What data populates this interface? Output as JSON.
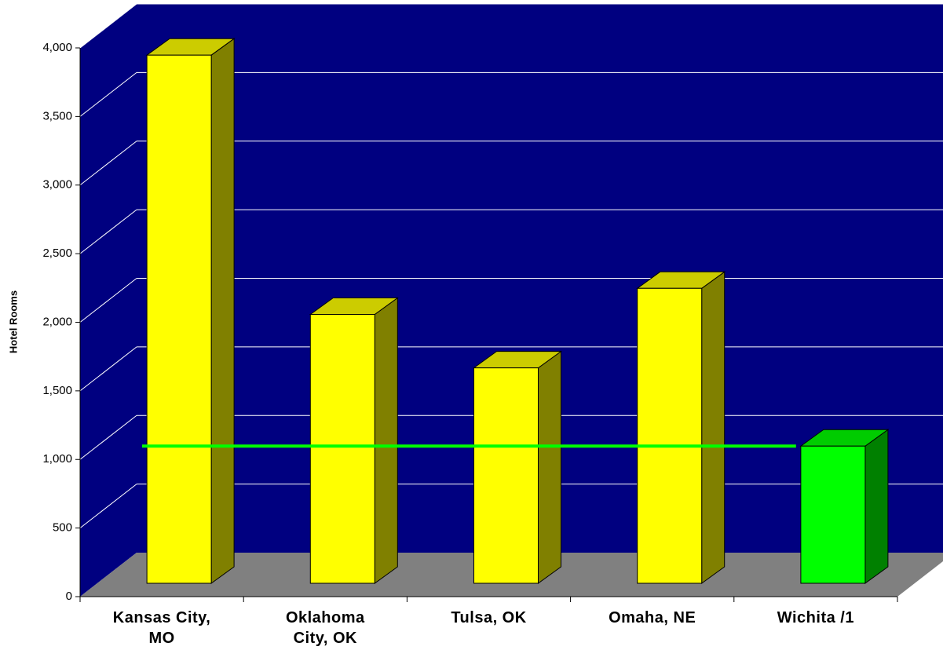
{
  "chart_data": {
    "type": "bar3d",
    "y_label": "Hotel Rooms",
    "categories": [
      "Kansas City, MO",
      "Oklahoma City, OK",
      "Tulsa, OK",
      "Omaha, NE",
      "Wichita /1"
    ],
    "values": [
      3850,
      1960,
      1570,
      2150,
      1000
    ],
    "colors": [
      "#ffff00",
      "#ffff00",
      "#ffff00",
      "#ffff00",
      "#00ff00"
    ],
    "line_series": {
      "color": "#00ff00",
      "values": [
        1000,
        1000,
        1000,
        1000,
        1000
      ]
    },
    "ylim": [
      0,
      4000
    ],
    "yticks": [
      0,
      500,
      {
        "value": 1000,
        "label": "1,000"
      },
      {
        "value": 1500,
        "label": "1,500"
      },
      {
        "value": 2000,
        "label": "2,000"
      },
      {
        "value": 2500,
        "label": "2,500"
      },
      {
        "value": 3000,
        "label": "3,000"
      },
      {
        "value": 3500,
        "label": "3,500"
      },
      {
        "value": 4000,
        "label": "4,000"
      }
    ],
    "wall_color": "#000080",
    "floor_color": "#808080",
    "grid": true
  }
}
